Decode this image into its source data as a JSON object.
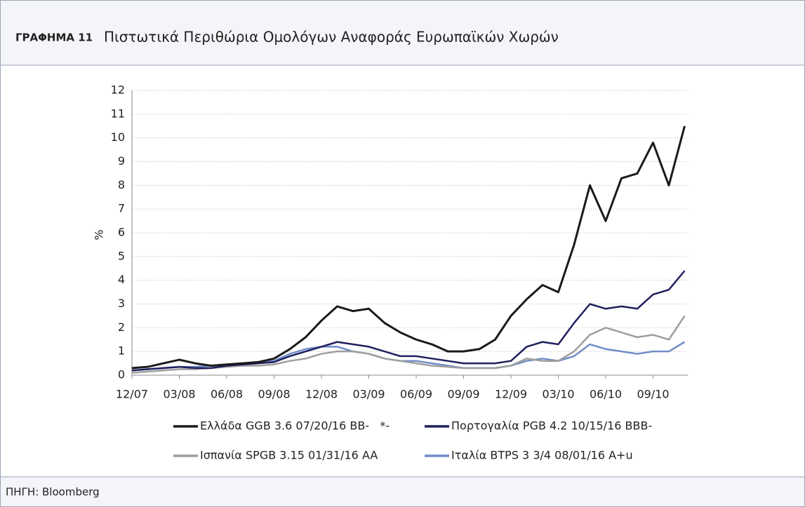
{
  "header": {
    "label": "ΓΡΑΦΗΜΑ 11",
    "title": "Πιστωτικά Περιθώρια Ομολόγων Αναφοράς Ευρωπαϊκών Χωρών"
  },
  "footer": "ΠΗΓΗ: Bloomberg",
  "chart_data": {
    "type": "line",
    "ylabel": "%",
    "x": [
      "12/07",
      "01/08",
      "02/08",
      "03/08",
      "04/08",
      "05/08",
      "06/08",
      "07/08",
      "08/08",
      "09/08",
      "10/08",
      "11/08",
      "12/08",
      "01/09",
      "02/09",
      "03/09",
      "04/09",
      "05/09",
      "06/09",
      "07/09",
      "08/09",
      "09/09",
      "10/09",
      "11/09",
      "12/09",
      "01/10",
      "02/10",
      "03/10",
      "04/10",
      "05/10",
      "06/10",
      "07/10",
      "08/10",
      "09/10",
      "10/10",
      "11/10"
    ],
    "xticks": [
      "12/07",
      "03/08",
      "06/08",
      "09/08",
      "12/08",
      "03/09",
      "06/09",
      "09/09",
      "12/09",
      "03/10",
      "06/10",
      "09/10"
    ],
    "ylim": [
      0,
      12
    ],
    "yticks": [
      0,
      1,
      2,
      3,
      4,
      5,
      6,
      7,
      8,
      9,
      10,
      11,
      12
    ],
    "grid": true,
    "series": [
      {
        "name": "Ελλάδα GGB 3.6 07/20/16 BB-   *-",
        "color": "#1a1a1a",
        "values": [
          0.3,
          0.35,
          0.5,
          0.65,
          0.5,
          0.4,
          0.45,
          0.5,
          0.55,
          0.7,
          1.1,
          1.6,
          2.3,
          2.9,
          2.7,
          2.8,
          2.2,
          1.8,
          1.5,
          1.3,
          1.0,
          1.0,
          1.1,
          1.5,
          2.5,
          3.2,
          3.8,
          3.5,
          5.5,
          8.0,
          6.5,
          8.3,
          8.5,
          9.8,
          8.0,
          10.5
        ]
      },
      {
        "name": "Πορτογαλία PGB 4.2 10/15/16 BBB-",
        "color": "#1f1f5e",
        "values": [
          0.2,
          0.25,
          0.3,
          0.35,
          0.3,
          0.3,
          0.4,
          0.45,
          0.5,
          0.55,
          0.8,
          1.0,
          1.2,
          1.4,
          1.3,
          1.2,
          1.0,
          0.8,
          0.8,
          0.7,
          0.6,
          0.5,
          0.5,
          0.5,
          0.6,
          1.2,
          1.4,
          1.3,
          2.2,
          3.0,
          2.8,
          2.9,
          2.8,
          3.4,
          3.6,
          4.4
        ]
      },
      {
        "name": "Ισπανία SPGB 3.15 01/31/16 AA",
        "color": "#9e9e9e",
        "values": [
          0.1,
          0.15,
          0.2,
          0.25,
          0.25,
          0.3,
          0.35,
          0.4,
          0.4,
          0.45,
          0.6,
          0.7,
          0.9,
          1.0,
          1.0,
          0.9,
          0.7,
          0.6,
          0.5,
          0.4,
          0.35,
          0.3,
          0.3,
          0.3,
          0.4,
          0.7,
          0.6,
          0.6,
          1.0,
          1.7,
          2.0,
          1.8,
          1.6,
          1.7,
          1.5,
          2.5
        ]
      },
      {
        "name": "Ιταλία BTPS 3 3/4 08/01/16 A+u",
        "color": "#6f8ec7",
        "values": [
          0.2,
          0.25,
          0.3,
          0.35,
          0.35,
          0.4,
          0.45,
          0.5,
          0.55,
          0.6,
          0.9,
          1.1,
          1.2,
          1.2,
          1.0,
          0.9,
          0.7,
          0.6,
          0.6,
          0.5,
          0.4,
          0.3,
          0.3,
          0.3,
          0.4,
          0.6,
          0.7,
          0.6,
          0.8,
          1.3,
          1.1,
          1.0,
          0.9,
          1.0,
          1.0,
          1.4
        ]
      }
    ]
  }
}
